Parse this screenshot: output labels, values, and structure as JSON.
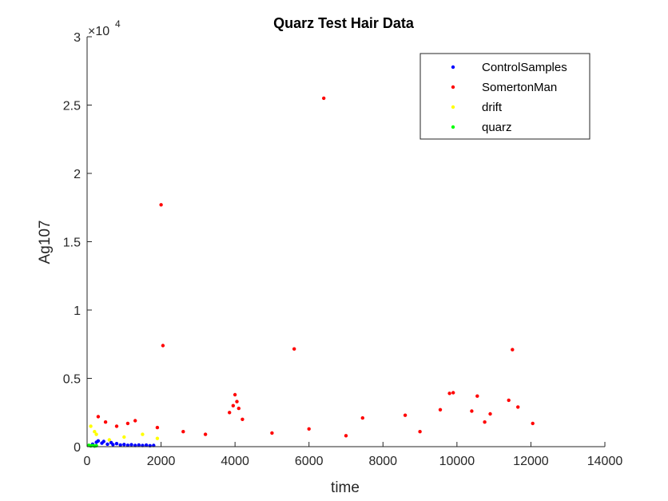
{
  "chart_data": {
    "type": "scatter",
    "title": "Quarz Test Hair Data",
    "xlabel": "time",
    "ylabel": "Ag107",
    "y_exponent_label": "×10",
    "y_exponent": "4",
    "xlim": [
      0,
      14000
    ],
    "ylim": [
      0,
      30000
    ],
    "x_ticks": [
      0,
      2000,
      4000,
      6000,
      8000,
      10000,
      12000,
      14000
    ],
    "x_tick_labels": [
      "0",
      "2000",
      "4000",
      "6000",
      "8000",
      "10000",
      "12000",
      "14000"
    ],
    "y_ticks": [
      0,
      5000,
      10000,
      15000,
      20000,
      25000,
      30000
    ],
    "y_tick_labels": [
      "0",
      "0.5",
      "1",
      "1.5",
      "2",
      "2.5",
      "3"
    ],
    "grid": false,
    "legend_position": "top-right",
    "series": [
      {
        "name": "ControlSamples",
        "color": "#0000ff",
        "points": [
          [
            150,
            180
          ],
          [
            250,
            320
          ],
          [
            300,
            420
          ],
          [
            400,
            260
          ],
          [
            450,
            380
          ],
          [
            550,
            180
          ],
          [
            650,
            300
          ],
          [
            700,
            150
          ],
          [
            800,
            220
          ],
          [
            900,
            120
          ],
          [
            1000,
            160
          ],
          [
            1100,
            100
          ],
          [
            1200,
            140
          ],
          [
            1300,
            90
          ],
          [
            1400,
            120
          ],
          [
            1500,
            80
          ],
          [
            1600,
            110
          ],
          [
            1700,
            70
          ],
          [
            1800,
            90
          ]
        ]
      },
      {
        "name": "SomertonMan",
        "color": "#ff0000",
        "points": [
          [
            2000,
            17700
          ],
          [
            2050,
            7400
          ],
          [
            6400,
            25500
          ],
          [
            5600,
            7150
          ],
          [
            11500,
            7100
          ],
          [
            9800,
            3900
          ],
          [
            9900,
            3950
          ],
          [
            10550,
            3700
          ],
          [
            11400,
            3400
          ],
          [
            4000,
            3800
          ],
          [
            4050,
            3300
          ],
          [
            3950,
            3000
          ],
          [
            4100,
            2800
          ],
          [
            3850,
            2500
          ],
          [
            4200,
            2000
          ],
          [
            9550,
            2700
          ],
          [
            11650,
            2900
          ],
          [
            8600,
            2300
          ],
          [
            7450,
            2100
          ],
          [
            10400,
            2600
          ],
          [
            10900,
            2400
          ],
          [
            10750,
            1800
          ],
          [
            1100,
            1700
          ],
          [
            1300,
            1900
          ],
          [
            300,
            2200
          ],
          [
            500,
            1800
          ],
          [
            800,
            1500
          ],
          [
            1900,
            1400
          ],
          [
            2600,
            1100
          ],
          [
            3200,
            900
          ],
          [
            5000,
            1000
          ],
          [
            6000,
            1300
          ],
          [
            7000,
            800
          ],
          [
            9000,
            1100
          ],
          [
            12050,
            1700
          ]
        ]
      },
      {
        "name": "drift",
        "color": "#ffff00",
        "points": [
          [
            100,
            1500
          ],
          [
            200,
            1100
          ],
          [
            250,
            900
          ],
          [
            600,
            500
          ],
          [
            1000,
            700
          ],
          [
            1500,
            900
          ],
          [
            1900,
            600
          ]
        ]
      },
      {
        "name": "quarz",
        "color": "#00ff00",
        "points": [
          [
            50,
            100
          ],
          [
            100,
            50
          ],
          [
            150,
            80
          ],
          [
            200,
            40
          ],
          [
            250,
            70
          ]
        ]
      }
    ]
  }
}
